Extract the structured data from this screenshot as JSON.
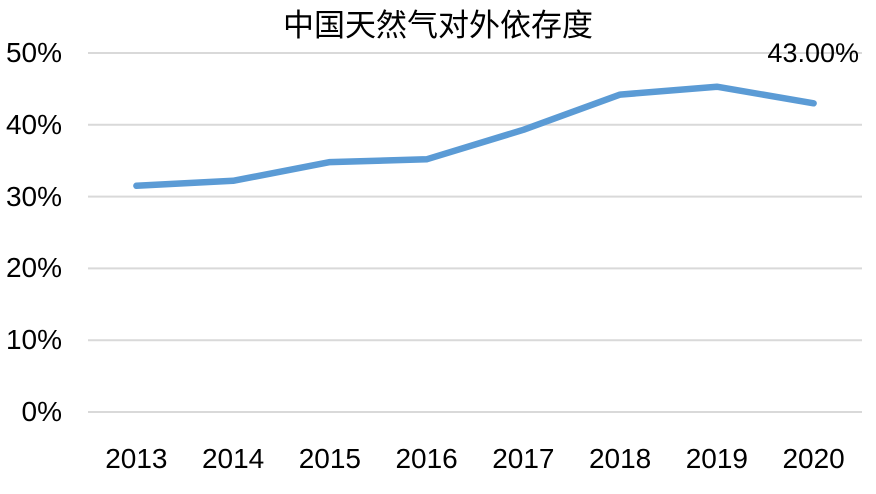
{
  "chart_data": {
    "type": "line",
    "title": "中国天然气对外依存度",
    "categories": [
      "2013",
      "2014",
      "2015",
      "2016",
      "2017",
      "2018",
      "2019",
      "2020"
    ],
    "series": [
      {
        "name": "中国天然气对外依存度",
        "values": [
          31.5,
          32.2,
          34.8,
          35.2,
          39.3,
          44.2,
          45.3,
          43.0
        ]
      }
    ],
    "xlabel": "",
    "ylabel": "",
    "ylim": [
      0,
      50
    ],
    "ytick_step": 10,
    "ytick_labels": [
      "0%",
      "10%",
      "20%",
      "30%",
      "40%",
      "50%"
    ],
    "grid": true,
    "legend_position": "none",
    "annotations": [
      {
        "text": "43.00%",
        "category": "2020",
        "value": 43.0
      }
    ],
    "colors": {
      "line": "#5B9BD5",
      "gridline": "#D9D9D9",
      "text": "#000000",
      "background": "#FFFFFF"
    }
  }
}
